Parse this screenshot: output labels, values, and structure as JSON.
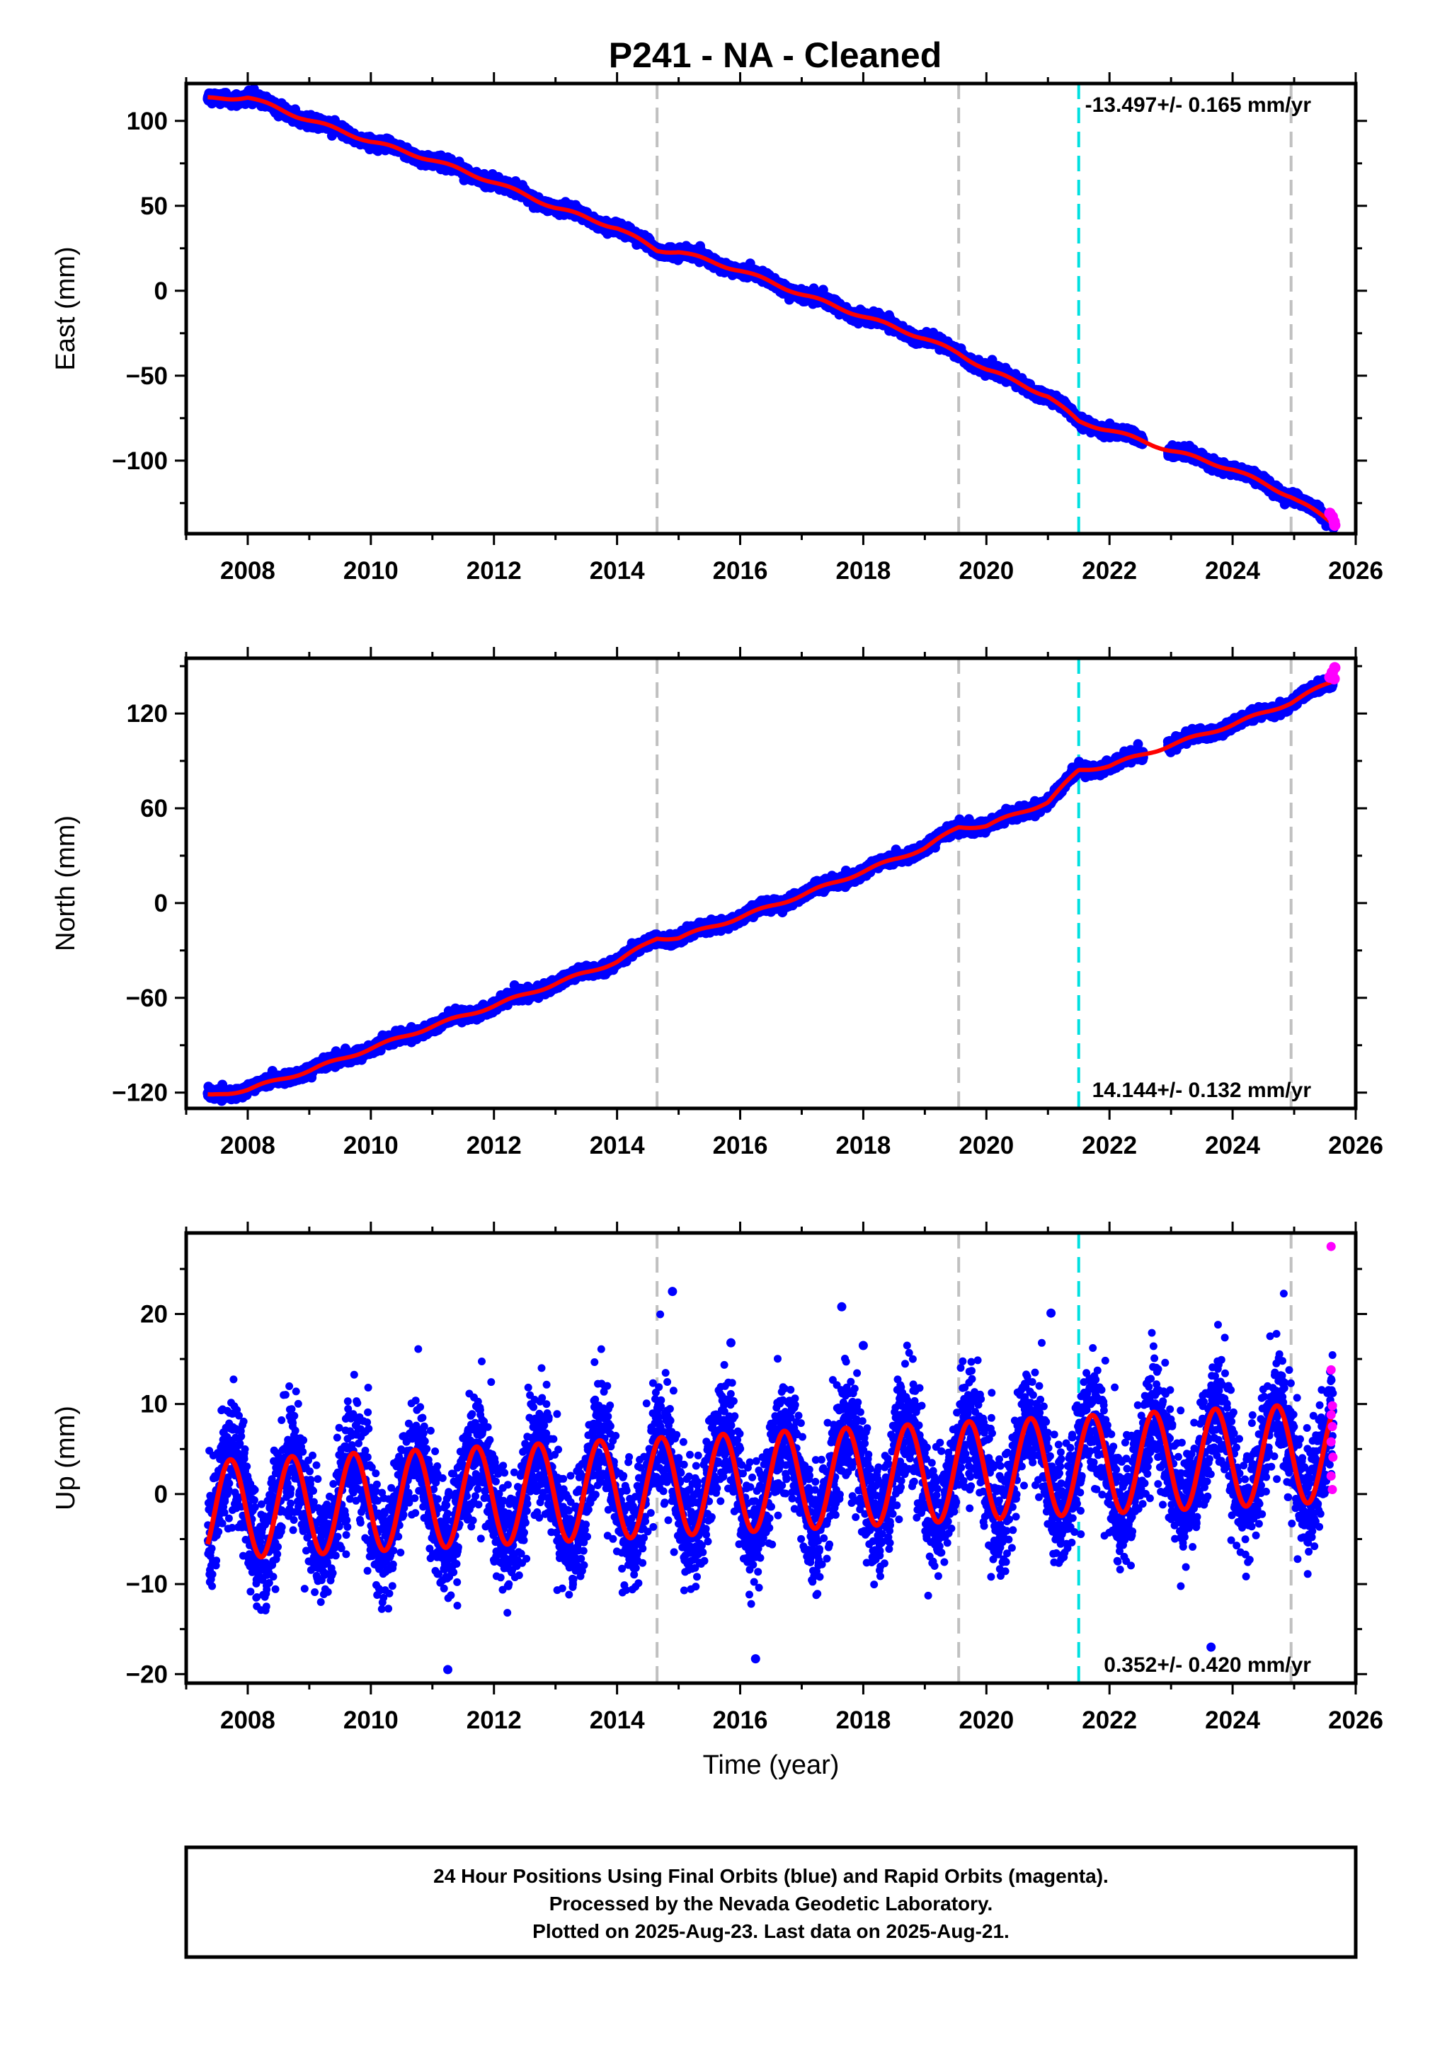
{
  "title": "P241  - NA - Cleaned",
  "colors": {
    "final_orbits": "#0000ff",
    "rapid_orbits": "#ff00ff",
    "model": "#ff0000",
    "event_gray": "#c0c0c0",
    "event_cyan": "#00e0e0"
  },
  "footer": {
    "line1": "24 Hour Positions Using Final Orbits (blue) and Rapid Orbits (magenta).",
    "line2": "Processed by the Nevada Geodetic Laboratory.",
    "line3": "Plotted on 2025-Aug-23. Last data on 2025-Aug-21."
  },
  "chart_data": [
    {
      "type": "scatter",
      "component": "east",
      "ylabel": "East (mm)",
      "xlabel": "",
      "xlim": [
        2007.0,
        2026.0
      ],
      "ylim": [
        -143,
        122
      ],
      "xticks": [
        2008,
        2010,
        2012,
        2014,
        2016,
        2018,
        2020,
        2022,
        2024,
        2026
      ],
      "yticks": [
        -100,
        -50,
        0,
        50,
        100
      ],
      "ytick_labels": [
        "−100",
        "−50",
        "0",
        "50",
        "100"
      ],
      "rate_label": "-13.497+/- 0.165 mm/yr",
      "rate_position": "top-right",
      "events_gray": [
        2014.65,
        2019.55,
        2024.95
      ],
      "events_cyan": [
        2021.5
      ],
      "data_start": 2007.35,
      "data_end": 2025.64,
      "trend": {
        "t0": 2007.35,
        "y0": 114,
        "slope": -13.497
      },
      "seasonal_amplitude": 2.5,
      "noise_sd": 1.5,
      "model_points": [
        [
          2007.4,
          113
        ],
        [
          2008.0,
          114
        ],
        [
          2008.8,
          103
        ],
        [
          2010.0,
          88
        ],
        [
          2011.0,
          77
        ],
        [
          2012.0,
          64
        ],
        [
          2013.0,
          49
        ],
        [
          2014.0,
          37
        ],
        [
          2014.65,
          24
        ],
        [
          2015.0,
          23
        ],
        [
          2016.0,
          12
        ],
        [
          2017.0,
          -2
        ],
        [
          2018.0,
          -15
        ],
        [
          2019.0,
          -28
        ],
        [
          2019.55,
          -37
        ],
        [
          2020.0,
          -46
        ],
        [
          2021.0,
          -62
        ],
        [
          2021.5,
          -77
        ],
        [
          2022.0,
          -82
        ],
        [
          2023.0,
          -94
        ],
        [
          2024.0,
          -105
        ],
        [
          2024.95,
          -121
        ],
        [
          2025.64,
          -137
        ]
      ],
      "rapid_points": [
        [
          2025.58,
          -131
        ],
        [
          2025.62,
          -133
        ],
        [
          2025.65,
          -136
        ],
        [
          2025.66,
          -138
        ]
      ]
    },
    {
      "type": "scatter",
      "component": "north",
      "ylabel": "North (mm)",
      "xlabel": "",
      "xlim": [
        2007.0,
        2026.0
      ],
      "ylim": [
        -130,
        155
      ],
      "xticks": [
        2008,
        2010,
        2012,
        2014,
        2016,
        2018,
        2020,
        2022,
        2024,
        2026
      ],
      "yticks": [
        -120,
        -60,
        0,
        60,
        120
      ],
      "ytick_labels": [
        "−120",
        "−60",
        "0",
        "60",
        "120"
      ],
      "rate_label": "14.144+/- 0.132 mm/yr",
      "rate_position": "bottom-right",
      "events_gray": [
        2014.65,
        2019.55,
        2024.95
      ],
      "events_cyan": [
        2021.5
      ],
      "data_start": 2007.35,
      "data_end": 2025.64,
      "trend": {
        "t0": 2007.35,
        "y0": -122,
        "slope": 14.144
      },
      "seasonal_amplitude": 2.5,
      "noise_sd": 1.6,
      "model_points": [
        [
          2007.4,
          -122
        ],
        [
          2008.0,
          -118
        ],
        [
          2009.0,
          -106
        ],
        [
          2010.0,
          -92
        ],
        [
          2011.0,
          -78
        ],
        [
          2012.0,
          -65
        ],
        [
          2013.0,
          -51
        ],
        [
          2014.0,
          -37
        ],
        [
          2014.65,
          -22
        ],
        [
          2015.0,
          -22
        ],
        [
          2016.0,
          -9
        ],
        [
          2017.0,
          5
        ],
        [
          2018.0,
          20
        ],
        [
          2019.0,
          35
        ],
        [
          2019.55,
          48
        ],
        [
          2020.0,
          49
        ],
        [
          2021.0,
          64
        ],
        [
          2021.5,
          84
        ],
        [
          2022.0,
          87
        ],
        [
          2023.0,
          100
        ],
        [
          2024.0,
          113
        ],
        [
          2024.95,
          127
        ],
        [
          2025.64,
          141
        ]
      ],
      "rapid_points": [
        [
          2025.58,
          143
        ],
        [
          2025.62,
          146
        ],
        [
          2025.65,
          142
        ],
        [
          2025.66,
          149
        ]
      ]
    },
    {
      "type": "scatter",
      "component": "up",
      "ylabel": "Up (mm)",
      "xlabel": "Time (year)",
      "xlim": [
        2007.0,
        2026.0
      ],
      "ylim": [
        -21,
        29
      ],
      "xticks": [
        2008,
        2010,
        2012,
        2014,
        2016,
        2018,
        2020,
        2022,
        2024,
        2026
      ],
      "yticks": [
        -20,
        -10,
        0,
        10,
        20
      ],
      "ytick_labels": [
        "−20",
        "−10",
        "0",
        "10",
        "20"
      ],
      "rate_label": "0.352+/- 0.420 mm/yr",
      "rate_position": "bottom-right",
      "events_gray": [
        2014.65,
        2019.55,
        2024.95
      ],
      "events_cyan": [
        2021.5
      ],
      "data_start": 2007.35,
      "data_end": 2025.64,
      "trend": {
        "t0": 2007.35,
        "y0": -1.8,
        "slope": 0.352
      },
      "seasonal_amplitude": 5.5,
      "seasonal_phase_peak": 0.72,
      "noise_sd": 3.2,
      "model_points": [],
      "rapid_points": [
        [
          2025.6,
          27.5
        ],
        [
          2025.6,
          13.8
        ],
        [
          2025.62,
          9.8
        ],
        [
          2025.6,
          8.8
        ],
        [
          2025.62,
          7.5
        ],
        [
          2025.6,
          5.8
        ],
        [
          2025.63,
          4.1
        ],
        [
          2025.6,
          2.0
        ],
        [
          2025.62,
          0.5
        ]
      ],
      "outliers": [
        [
          2014.9,
          22.5
        ],
        [
          2017.65,
          20.8
        ],
        [
          2021.05,
          20.1
        ],
        [
          2015.85,
          16.8
        ],
        [
          2018.0,
          16.5
        ],
        [
          2011.25,
          -19.5
        ],
        [
          2023.65,
          -17.0
        ],
        [
          2016.25,
          -18.3
        ]
      ]
    }
  ]
}
